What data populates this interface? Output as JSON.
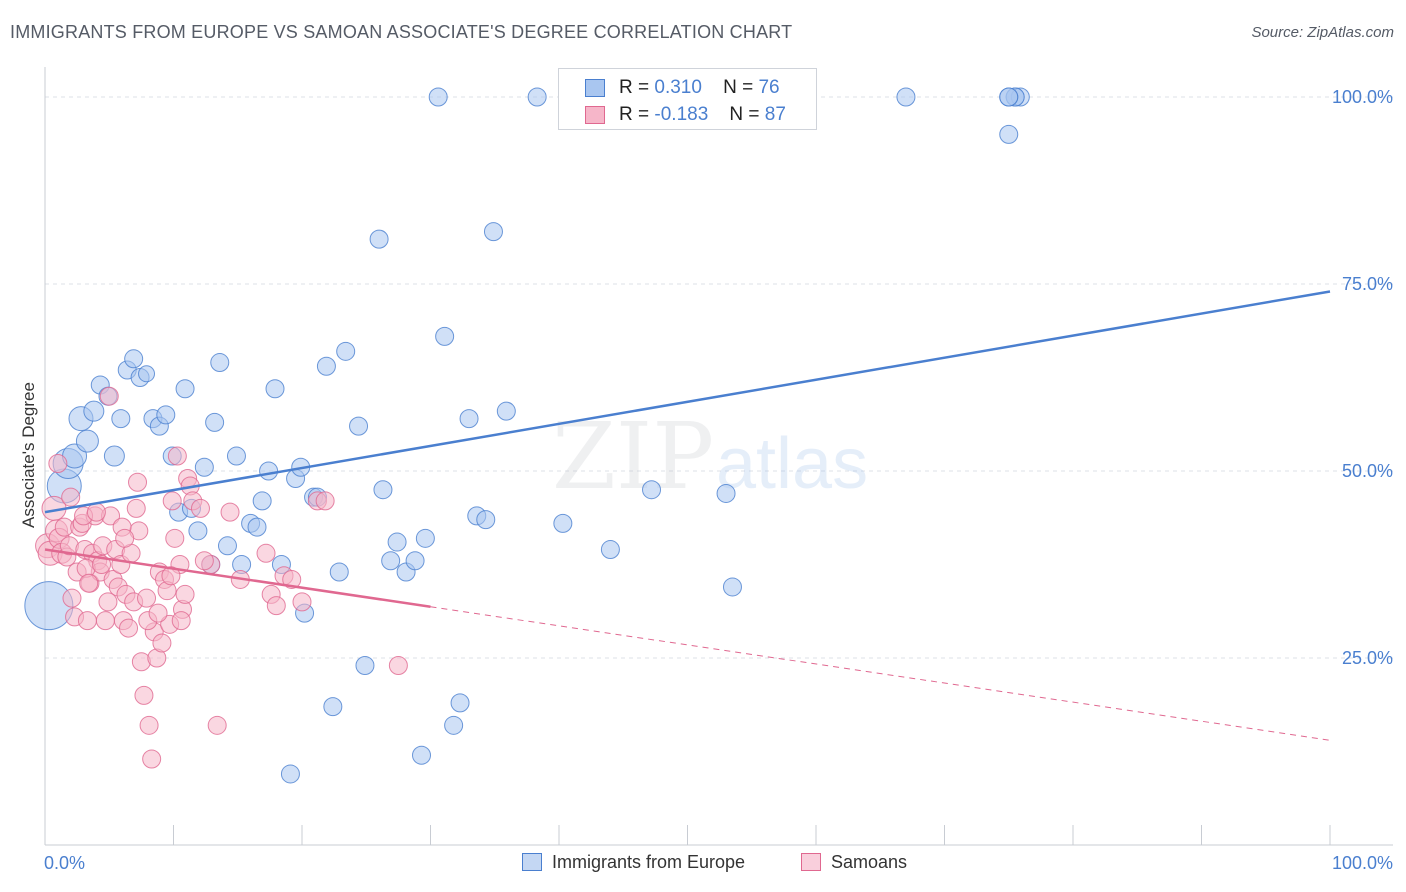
{
  "title": "IMMIGRANTS FROM EUROPE VS SAMOAN ASSOCIATE'S DEGREE CORRELATION CHART",
  "source": "Source: ZipAtlas.com",
  "watermark": {
    "zip": "ZIP",
    "atlas": "atlas"
  },
  "legend": {
    "r_label": "R =",
    "n_label": "N =",
    "rows": [
      {
        "name": "Immigrants from Europe",
        "r": "0.310",
        "n": "76",
        "fill": "#a9c6f0",
        "stroke": "#4a7fcf"
      },
      {
        "name": "Samoans",
        "r": "-0.183",
        "n": "87",
        "fill": "#f6b6c9",
        "stroke": "#e06890"
      }
    ]
  },
  "chart_data": {
    "type": "scatter",
    "title": "IMMIGRANTS FROM EUROPE VS SAMOAN ASSOCIATE'S DEGREE CORRELATION CHART",
    "xlabel": "",
    "ylabel": "Associate's Degree",
    "xlim": [
      0,
      100
    ],
    "ylim": [
      0,
      100
    ],
    "x_tick_labels": {
      "left": "0.0%",
      "right": "100.0%"
    },
    "y_ticks": [
      {
        "value": 25,
        "label": "25.0%"
      },
      {
        "value": 50,
        "label": "50.0%"
      },
      {
        "value": 75,
        "label": "75.0%"
      },
      {
        "value": 100,
        "label": "100.0%"
      }
    ],
    "series": [
      {
        "name": "Immigrants from Europe",
        "color": "#4a7fcf",
        "fill": "#a9c6f0",
        "trend": {
          "x0": 0,
          "y0": 44.5,
          "x1": 100,
          "y1": 74,
          "dashed_from": null
        },
        "points": [
          [
            0.3,
            32,
            24
          ],
          [
            1.5,
            48,
            17
          ],
          [
            1.8,
            51,
            15
          ],
          [
            2.3,
            52,
            12
          ],
          [
            2.8,
            57,
            12
          ],
          [
            3.3,
            54,
            11
          ],
          [
            3.8,
            58,
            10
          ],
          [
            4.3,
            61.5,
            9
          ],
          [
            4.9,
            60,
            9
          ],
          [
            5.4,
            52,
            10
          ],
          [
            5.9,
            57,
            9
          ],
          [
            6.4,
            63.5,
            9
          ],
          [
            6.9,
            65,
            9
          ],
          [
            7.4,
            62.5,
            9
          ],
          [
            7.9,
            63,
            8
          ],
          [
            8.4,
            57,
            9
          ],
          [
            8.9,
            56,
            9
          ],
          [
            9.4,
            57.5,
            9
          ],
          [
            9.9,
            52,
            9
          ],
          [
            10.4,
            44.5,
            9
          ],
          [
            10.9,
            61,
            9
          ],
          [
            11.4,
            45,
            9
          ],
          [
            11.9,
            42,
            9
          ],
          [
            12.4,
            50.5,
            9
          ],
          [
            12.9,
            37.5,
            9
          ],
          [
            13.2,
            56.5,
            9
          ],
          [
            13.6,
            64.5,
            9
          ],
          [
            14.2,
            40,
            9
          ],
          [
            14.9,
            52,
            9
          ],
          [
            15.3,
            37.5,
            9
          ],
          [
            16.0,
            43,
            9
          ],
          [
            16.5,
            42.5,
            9
          ],
          [
            16.9,
            46,
            9
          ],
          [
            17.4,
            50,
            9
          ],
          [
            17.9,
            61,
            9
          ],
          [
            18.4,
            37.5,
            9
          ],
          [
            19.1,
            9.5,
            9
          ],
          [
            19.5,
            49,
            9
          ],
          [
            19.9,
            50.5,
            9
          ],
          [
            20.2,
            31,
            9
          ],
          [
            20.9,
            46.5,
            9
          ],
          [
            21.2,
            46.5,
            9
          ],
          [
            21.9,
            64,
            9
          ],
          [
            22.4,
            18.5,
            9
          ],
          [
            22.9,
            36.5,
            9
          ],
          [
            23.4,
            66,
            9
          ],
          [
            24.4,
            56,
            9
          ],
          [
            24.9,
            24,
            9
          ],
          [
            26.0,
            81,
            9
          ],
          [
            26.3,
            47.5,
            9
          ],
          [
            26.9,
            38,
            9
          ],
          [
            27.4,
            40.5,
            9
          ],
          [
            28.1,
            36.5,
            9
          ],
          [
            28.8,
            38,
            9
          ],
          [
            29.3,
            12,
            9
          ],
          [
            29.6,
            41,
            9
          ],
          [
            30.6,
            100,
            9
          ],
          [
            31.1,
            68,
            9
          ],
          [
            31.8,
            16,
            9
          ],
          [
            32.3,
            19,
            9
          ],
          [
            33.0,
            57,
            9
          ],
          [
            33.6,
            44,
            9
          ],
          [
            34.3,
            43.5,
            9
          ],
          [
            34.9,
            82,
            9
          ],
          [
            35.9,
            58,
            9
          ],
          [
            38.3,
            100,
            9
          ],
          [
            40.3,
            43,
            9
          ],
          [
            44.0,
            39.5,
            9
          ],
          [
            47.2,
            47.5,
            9
          ],
          [
            53.0,
            47,
            9
          ],
          [
            53.5,
            34.5,
            9
          ],
          [
            67.0,
            100,
            9
          ],
          [
            75.0,
            95,
            9
          ],
          [
            75.5,
            100,
            9
          ],
          [
            75.9,
            100,
            9
          ],
          [
            75.5,
            100,
            9
          ],
          [
            75.0,
            100,
            9
          ],
          [
            75.0,
            100,
            9
          ]
        ]
      },
      {
        "name": "Samoans",
        "color": "#e06890",
        "fill": "#f6b6c9",
        "trend": {
          "x0": 0,
          "y0": 39.5,
          "x1": 100,
          "y1": 14,
          "dashed_from": 30
        },
        "points": [
          [
            0.2,
            40,
            12
          ],
          [
            0.4,
            39,
            12
          ],
          [
            0.7,
            45,
            12
          ],
          [
            0.9,
            42,
            11
          ],
          [
            1.1,
            41,
            10
          ],
          [
            1.3,
            39,
            10
          ],
          [
            1.5,
            42.5,
            9
          ],
          [
            1.7,
            38.5,
            9
          ],
          [
            1.9,
            40,
            9
          ],
          [
            2.1,
            33,
            9
          ],
          [
            2.3,
            30.5,
            9
          ],
          [
            2.5,
            36.5,
            9
          ],
          [
            2.7,
            42.5,
            9
          ],
          [
            2.9,
            43,
            9
          ],
          [
            3.1,
            39.5,
            9
          ],
          [
            3.3,
            30,
            9
          ],
          [
            3.5,
            35,
            9
          ],
          [
            3.7,
            39,
            9
          ],
          [
            3.9,
            44,
            9
          ],
          [
            4.1,
            38,
            9
          ],
          [
            4.3,
            36.5,
            9
          ],
          [
            4.5,
            40,
            9
          ],
          [
            4.7,
            30,
            9
          ],
          [
            4.9,
            32.5,
            9
          ],
          [
            5.1,
            44,
            9
          ],
          [
            5.3,
            35.5,
            9
          ],
          [
            5.5,
            39.5,
            9
          ],
          [
            5.7,
            34.5,
            9
          ],
          [
            5.9,
            37.5,
            9
          ],
          [
            6.1,
            30,
            9
          ],
          [
            6.3,
            33.5,
            9
          ],
          [
            6.5,
            29,
            9
          ],
          [
            6.7,
            39,
            9
          ],
          [
            6.9,
            32.5,
            9
          ],
          [
            7.1,
            45,
            9
          ],
          [
            7.3,
            42,
            9
          ],
          [
            7.5,
            24.5,
            9
          ],
          [
            7.7,
            20,
            9
          ],
          [
            7.9,
            33,
            9
          ],
          [
            8.1,
            16,
            9
          ],
          [
            8.3,
            11.5,
            9
          ],
          [
            8.5,
            28.5,
            9
          ],
          [
            8.7,
            25,
            9
          ],
          [
            8.9,
            36.5,
            9
          ],
          [
            9.1,
            27,
            9
          ],
          [
            9.3,
            35.5,
            9
          ],
          [
            9.5,
            34,
            9
          ],
          [
            9.7,
            29.5,
            9
          ],
          [
            9.9,
            46,
            9
          ],
          [
            10.1,
            41,
            9
          ],
          [
            10.3,
            52,
            9
          ],
          [
            10.5,
            37.5,
            9
          ],
          [
            10.7,
            31.5,
            9
          ],
          [
            10.9,
            33.5,
            9
          ],
          [
            11.1,
            49,
            9
          ],
          [
            11.3,
            48,
            9
          ],
          [
            11.5,
            46,
            9
          ],
          [
            12.1,
            45,
            9
          ],
          [
            12.9,
            37.5,
            9
          ],
          [
            13.4,
            16,
            9
          ],
          [
            14.4,
            44.5,
            9
          ],
          [
            15.2,
            35.5,
            9
          ],
          [
            17.2,
            39,
            9
          ],
          [
            17.6,
            33.5,
            9
          ],
          [
            18.0,
            32,
            9
          ],
          [
            18.6,
            36,
            9
          ],
          [
            19.2,
            35.5,
            9
          ],
          [
            20.0,
            32.5,
            9
          ],
          [
            21.2,
            46,
            9
          ],
          [
            21.8,
            46,
            9
          ],
          [
            27.5,
            24,
            9
          ],
          [
            1.0,
            51,
            9
          ],
          [
            2.0,
            46.5,
            9
          ],
          [
            3.0,
            44,
            9
          ],
          [
            3.2,
            37,
            9
          ],
          [
            3.4,
            35,
            9
          ],
          [
            4.0,
            44.5,
            9
          ],
          [
            4.4,
            37.5,
            9
          ],
          [
            5.0,
            60,
            9
          ],
          [
            6.0,
            42.5,
            9
          ],
          [
            6.2,
            41,
            9
          ],
          [
            7.2,
            48.5,
            9
          ],
          [
            8.0,
            30,
            9
          ],
          [
            8.8,
            31,
            9
          ],
          [
            9.8,
            36,
            9
          ],
          [
            10.6,
            30,
            9
          ],
          [
            12.4,
            38,
            9
          ]
        ]
      }
    ]
  }
}
